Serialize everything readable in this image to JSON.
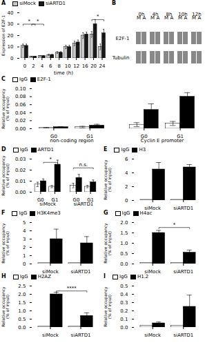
{
  "chart_data": [
    {
      "type": "bar",
      "title": "A",
      "categories": [
        "0",
        "2",
        "4",
        "6",
        "8",
        "10",
        "12",
        "16",
        "20",
        "24"
      ],
      "series": [
        {
          "name": "siMock",
          "color": "#c8c8c8",
          "values": [
            11,
            1.5,
            2,
            3,
            5,
            10,
            13,
            20,
            21,
            10
          ],
          "errors": [
            1.5,
            0.3,
            0.4,
            0.5,
            0.8,
            1.5,
            2,
            2.5,
            2.5,
            2.5
          ]
        },
        {
          "name": "siARTD1",
          "color": "#1a1a1a",
          "values": [
            11,
            1.5,
            2,
            3,
            5,
            10,
            14,
            21,
            30,
            22
          ],
          "errors": [
            1.5,
            0.3,
            0.4,
            0.5,
            0.8,
            1.5,
            2,
            2,
            4,
            3.5
          ]
        }
      ],
      "xlabel": "time (h)",
      "ylabel": "Expression of E2F-1",
      "ylim": [
        0,
        40
      ],
      "yticks": [
        0,
        10,
        20,
        30,
        40
      ],
      "annotations": [
        {
          "text": "*",
          "y": 30,
          "from_category": 0,
          "from_series": "siMock",
          "to_category": 1,
          "to_series": "siARTD1"
        },
        {
          "text": "*",
          "y": 30,
          "from_category": 1,
          "from_series": "siMock",
          "to_category": 2,
          "to_series": "siARTD1"
        },
        {
          "text": "*",
          "y": 34,
          "from_category": 8,
          "from_series": "siMock",
          "to_category": 9,
          "to_series": "siARTD1"
        }
      ]
    },
    {
      "type": "blot",
      "title": "B",
      "columns": [
        "0h",
        "4h",
        "8h",
        "10h",
        "12h"
      ],
      "lanes": [
        "M",
        "A"
      ],
      "rows": [
        "E2F-1",
        "Tubulin"
      ]
    },
    {
      "type": "bar",
      "title": "C",
      "categories": [
        "G0",
        "G1",
        "G0",
        "G1"
      ],
      "groups": [
        "non-coding region",
        "non-coding region",
        "Cyclin E promoter",
        "Cyclin E promoter"
      ],
      "series": [
        {
          "name": "IgG",
          "color": "#ffffff",
          "values": [
            0.002,
            0.004,
            0.01,
            0.013
          ],
          "errors": [
            0.001,
            0.002,
            0.005,
            0.005
          ]
        },
        {
          "name": "E2F-1",
          "color": "#000000",
          "values": [
            0.004,
            0.008,
            0.047,
            0.08
          ],
          "errors": [
            0.001,
            0.003,
            0.015,
            0.01
          ]
        }
      ],
      "ylabel": "Relative occupancy\n(% of input)",
      "ylim": [
        0,
        0.1
      ],
      "yticks": [
        {
          "value": 0,
          "label": "0.00"
        },
        0.02,
        0.04,
        0.06,
        0.08,
        {
          "value": 0.1,
          "label": "0.10"
        }
      ]
    },
    {
      "type": "bar",
      "title": "D",
      "categories": [
        "G0",
        "G1",
        "G0",
        "G1"
      ],
      "groups": [
        "siMock",
        "siMock",
        "siARTD1",
        "siARTD1"
      ],
      "series": [
        {
          "name": "IgG",
          "color": "#ffffff",
          "values": [
            0.007,
            0.005,
            0.006,
            0.005
          ],
          "errors": [
            0.002,
            0.001,
            0.002,
            0.001
          ]
        },
        {
          "name": "ARTD1",
          "color": "#000000",
          "values": [
            0.01,
            0.025,
            0.013,
            0.009
          ],
          "errors": [
            0.002,
            0.004,
            0.003,
            0.002
          ]
        }
      ],
      "ylabel": "Relative occupancy\n(% of input)",
      "ylim": [
        0,
        0.03
      ],
      "yticks": [
        {
          "value": 0,
          "label": "0.00"
        },
        0.01,
        0.02,
        0.03
      ],
      "annotations": [
        {
          "text": "*",
          "y": 0.027,
          "from_category": 0,
          "from_series": "ARTD1",
          "to_category": 1,
          "to_series": "ARTD1"
        },
        {
          "text": "n.s.",
          "y": 0.022,
          "from_category": 2,
          "from_series": "IgG",
          "to_category": 3,
          "to_series": "ARTD1"
        }
      ]
    },
    {
      "type": "bar",
      "title": "E",
      "categories": [
        "siMock",
        "siARTD1"
      ],
      "series": [
        {
          "name": "IgG",
          "color": "#ffffff",
          "values": [
            0.1,
            0.1
          ]
        },
        {
          "name": "H3",
          "color": "#000000",
          "values": [
            4.5,
            4.8
          ],
          "errors": [
            1.0,
            0.4
          ]
        }
      ],
      "ylabel": "Relative occupancy\n(% of input)",
      "ylim": [
        0,
        6
      ],
      "yticks": [
        0,
        2,
        4,
        6
      ]
    },
    {
      "type": "bar",
      "title": "F",
      "categories": [
        "siMock",
        "siARTD1"
      ],
      "series": [
        {
          "name": "IgG",
          "color": "#ffffff",
          "values": [
            0.1,
            0.1
          ]
        },
        {
          "name": "H3K4me3",
          "color": "#000000",
          "values": [
            3.0,
            2.5
          ],
          "errors": [
            1.2,
            0.8
          ]
        }
      ],
      "ylabel": "Relative occupancy\n(% of input)",
      "ylim": [
        0,
        5
      ],
      "yticks": [
        0,
        1,
        2,
        3,
        4,
        5
      ]
    },
    {
      "type": "bar",
      "title": "G",
      "categories": [
        "siMock",
        "siARTD1"
      ],
      "series": [
        {
          "name": "IgG",
          "color": "#ffffff",
          "values": [
            0.05,
            0.05
          ]
        },
        {
          "name": "H4ac",
          "color": "#000000",
          "values": [
            1.5,
            0.55
          ],
          "errors": [
            0.12,
            0.12
          ]
        }
      ],
      "ylabel": "Relative occupancy\n(% of input)",
      "ylim": [
        0,
        2.0
      ],
      "yticks": [
        {
          "value": 0,
          "label": "0.0"
        },
        0.5,
        {
          "value": 1,
          "label": "1.0"
        },
        1.5,
        {
          "value": 2,
          "label": "2.0"
        }
      ],
      "annotations": [
        {
          "text": "*",
          "y": 1.76,
          "from_category": 0,
          "from_series": "H4ac",
          "to_category": 1,
          "to_series": "H4ac"
        }
      ]
    },
    {
      "type": "bar",
      "title": "H",
      "categories": [
        "siMock",
        "siARTD1"
      ],
      "series": [
        {
          "name": "IgG",
          "color": "#ffffff",
          "values": [
            0.05,
            0.05
          ]
        },
        {
          "name": "H2AZ",
          "color": "#000000",
          "values": [
            2.0,
            0.7
          ],
          "errors": [
            0.12,
            0.18
          ]
        }
      ],
      "ylabel": "Relative occupancy\n(% of input)",
      "ylim": [
        0,
        2.5
      ],
      "yticks": [
        {
          "value": 0,
          "label": "0.0"
        },
        0.5,
        {
          "value": 1,
          "label": "1.0"
        },
        1.5,
        {
          "value": 2,
          "label": "2.0"
        },
        2.5
      ],
      "annotations": [
        {
          "text": "****",
          "y": 2.2,
          "from_category": 0,
          "from_series": "H2AZ",
          "to_category": 1,
          "to_series": "H2AZ"
        }
      ]
    },
    {
      "type": "bar",
      "title": "I",
      "categories": [
        "siMock",
        "siARTD1"
      ],
      "series": [
        {
          "name": "IgG",
          "color": "#ffffff",
          "values": [
            0.02,
            0.02
          ]
        },
        {
          "name": "H1.2",
          "color": "#000000",
          "values": [
            0.05,
            0.25
          ],
          "errors": [
            0.015,
            0.14
          ]
        }
      ],
      "ylabel": "Relative occupancy\n(% of input)",
      "ylim": [
        0,
        0.5
      ],
      "yticks": [
        {
          "value": 0,
          "label": "0.0"
        },
        0.1,
        0.2,
        0.3,
        0.4,
        0.5
      ]
    }
  ]
}
